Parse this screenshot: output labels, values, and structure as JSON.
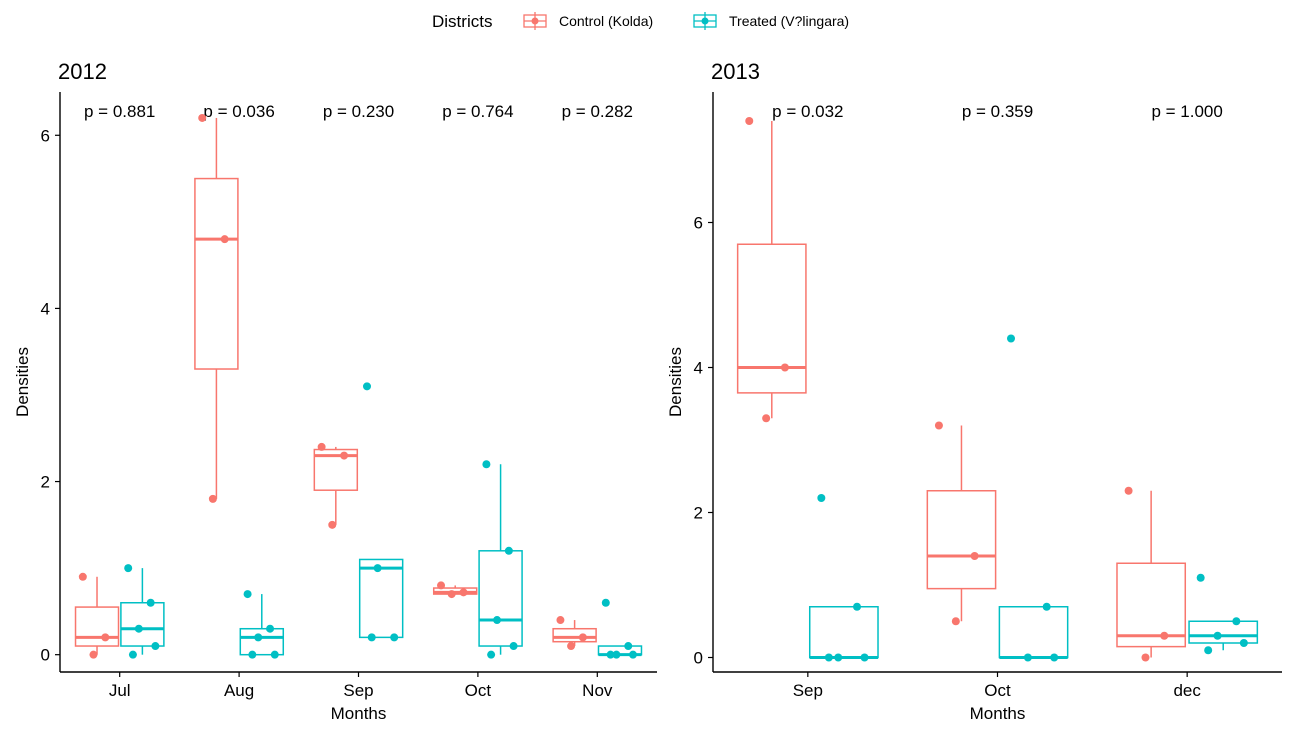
{
  "legend": {
    "title": "Districts",
    "position": "top",
    "items": [
      {
        "label": "Control (Kolda)",
        "color": "#F8766D"
      },
      {
        "label": "Treated (V?lingara)",
        "color": "#00BFC4"
      }
    ]
  },
  "chart_data": [
    {
      "type": "boxplot",
      "title": "2012",
      "xlabel": "Months",
      "ylabel": "Densities",
      "ylim": [
        -0.2,
        6.5
      ],
      "yticks": [
        0,
        2,
        4,
        6
      ],
      "grid": false,
      "categories": [
        "Jul",
        "Aug",
        "Sep",
        "Oct",
        "Nov"
      ],
      "pvalues": [
        "p = 0.881",
        "p = 0.036",
        "p = 0.230",
        "p = 0.764",
        "p = 0.282"
      ],
      "series": [
        {
          "name": "Control (Kolda)",
          "color": "#F8766D",
          "boxes": [
            {
              "q1": 0.1,
              "median": 0.2,
              "q3": 0.55,
              "whisker_low": 0.0,
              "whisker_high": 0.9,
              "points": [
                0.9,
                0.2,
                0.0
              ]
            },
            {
              "q1": 3.3,
              "median": 4.8,
              "q3": 5.5,
              "whisker_low": 1.8,
              "whisker_high": 6.2,
              "points": [
                6.2,
                4.8,
                1.8
              ]
            },
            {
              "q1": 1.9,
              "median": 2.3,
              "q3": 2.37,
              "whisker_low": 1.5,
              "whisker_high": 2.4,
              "points": [
                2.4,
                2.3,
                1.5
              ]
            },
            {
              "q1": 0.7,
              "median": 0.72,
              "q3": 0.77,
              "whisker_low": 0.7,
              "whisker_high": 0.8,
              "points": [
                0.8,
                0.72,
                0.7
              ]
            },
            {
              "q1": 0.15,
              "median": 0.2,
              "q3": 0.3,
              "whisker_low": 0.1,
              "whisker_high": 0.4,
              "points": [
                0.4,
                0.2,
                0.1
              ]
            }
          ]
        },
        {
          "name": "Treated (V?lingara)",
          "color": "#00BFC4",
          "boxes": [
            {
              "q1": 0.1,
              "median": 0.3,
              "q3": 0.6,
              "whisker_low": 0.0,
              "whisker_high": 1.0,
              "points": [
                1.0,
                0.6,
                0.3,
                0.1,
                0.0
              ]
            },
            {
              "q1": 0.0,
              "median": 0.2,
              "q3": 0.3,
              "whisker_low": 0.0,
              "whisker_high": 0.7,
              "points": [
                0.7,
                0.3,
                0.2,
                0.0,
                0.0
              ]
            },
            {
              "q1": 0.2,
              "median": 1.0,
              "q3": 1.1,
              "whisker_low": 0.2,
              "whisker_high": 1.1,
              "points": [
                3.1,
                1.1,
                1.0,
                0.2,
                0.2
              ]
            },
            {
              "q1": 0.1,
              "median": 0.4,
              "q3": 1.2,
              "whisker_low": 0.0,
              "whisker_high": 2.2,
              "points": [
                2.2,
                1.2,
                0.4,
                0.1,
                0.0
              ]
            },
            {
              "q1": 0.0,
              "median": 0.0,
              "q3": 0.1,
              "whisker_low": 0.0,
              "whisker_high": 0.1,
              "points": [
                0.6,
                0.1,
                0.0,
                0.0,
                0.0
              ]
            }
          ]
        }
      ]
    },
    {
      "type": "boxplot",
      "title": "2013",
      "xlabel": "Months",
      "ylabel": "Densities",
      "ylim": [
        -0.2,
        7.8
      ],
      "yticks": [
        0,
        2,
        4,
        6
      ],
      "grid": false,
      "categories": [
        "Sep",
        "Oct",
        "dec"
      ],
      "pvalues": [
        "p = 0.032",
        "p = 0.359",
        "p = 1.000"
      ],
      "series": [
        {
          "name": "Control (Kolda)",
          "color": "#F8766D",
          "boxes": [
            {
              "q1": 3.65,
              "median": 4.0,
              "q3": 5.7,
              "whisker_low": 3.3,
              "whisker_high": 7.4,
              "points": [
                7.4,
                4.0,
                3.3
              ]
            },
            {
              "q1": 0.95,
              "median": 1.4,
              "q3": 2.3,
              "whisker_low": 0.5,
              "whisker_high": 3.2,
              "points": [
                3.2,
                1.4,
                0.5
              ]
            },
            {
              "q1": 0.15,
              "median": 0.3,
              "q3": 1.3,
              "whisker_low": 0.0,
              "whisker_high": 2.3,
              "points": [
                2.3,
                0.3,
                0.0
              ]
            }
          ]
        },
        {
          "name": "Treated (V?lingara)",
          "color": "#00BFC4",
          "boxes": [
            {
              "q1": 0.0,
              "median": 0.0,
              "q3": 0.7,
              "whisker_low": 0.0,
              "whisker_high": 0.7,
              "points": [
                2.2,
                0.7,
                0.0,
                0.0,
                0.0
              ]
            },
            {
              "q1": 0.0,
              "median": 0.0,
              "q3": 0.7,
              "whisker_low": 0.0,
              "whisker_high": 0.7,
              "points": [
                4.4,
                0.7,
                0.0,
                0.0
              ]
            },
            {
              "q1": 0.2,
              "median": 0.3,
              "q3": 0.5,
              "whisker_low": 0.1,
              "whisker_high": 0.5,
              "points": [
                1.1,
                0.5,
                0.3,
                0.2,
                0.1
              ]
            }
          ]
        }
      ]
    }
  ]
}
